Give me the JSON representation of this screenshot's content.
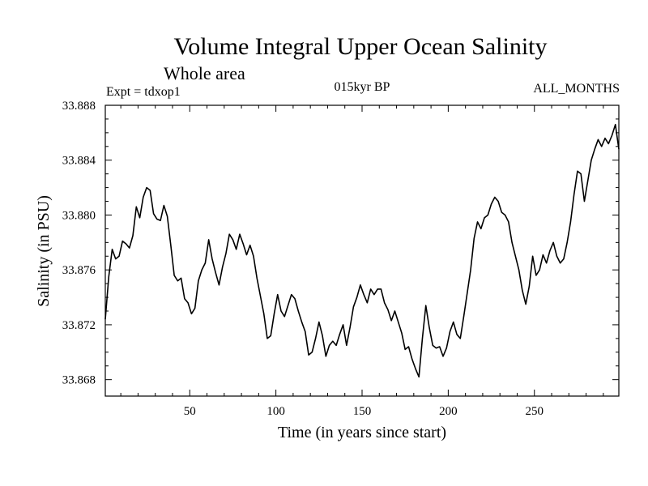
{
  "colors": {
    "line": "#000000",
    "background": "#ffffff"
  },
  "chart_data": {
    "type": "line",
    "title": "Volume Integral Upper Ocean Salinity",
    "subtitle": "Whole area",
    "annotation_left": "Expt = tdxop1",
    "annotation_center": "015kyr BP",
    "annotation_right": "ALL_MONTHS",
    "xlabel": "Time (in years since start)",
    "ylabel": "Salinity (in PSU)",
    "xlim": [
      1,
      299
    ],
    "ylim": [
      33.8668,
      33.888
    ],
    "xticks": [
      50,
      100,
      150,
      200,
      250
    ],
    "yticks": [
      33.868,
      33.872,
      33.876,
      33.88,
      33.884,
      33.888
    ],
    "ytick_labels": [
      "33.868",
      "33.872",
      "33.876",
      "33.880",
      "33.884",
      "33.888"
    ],
    "grid": false,
    "series": [
      {
        "name": "Salinity",
        "x": [
          1,
          3,
          5,
          7,
          9,
          11,
          13,
          15,
          17,
          19,
          21,
          23,
          25,
          27,
          29,
          31,
          33,
          35,
          37,
          39,
          41,
          43,
          45,
          47,
          49,
          51,
          53,
          55,
          57,
          59,
          61,
          63,
          65,
          67,
          69,
          71,
          73,
          75,
          77,
          79,
          81,
          83,
          85,
          87,
          89,
          91,
          93,
          95,
          97,
          99,
          101,
          103,
          105,
          107,
          109,
          111,
          113,
          115,
          117,
          119,
          121,
          123,
          125,
          127,
          129,
          131,
          133,
          135,
          137,
          139,
          141,
          143,
          145,
          147,
          149,
          151,
          153,
          155,
          157,
          159,
          161,
          163,
          165,
          167,
          169,
          171,
          173,
          175,
          177,
          179,
          181,
          183,
          185,
          187,
          189,
          191,
          193,
          195,
          197,
          199,
          201,
          203,
          205,
          207,
          209,
          211,
          213,
          215,
          217,
          219,
          221,
          223,
          225,
          227,
          229,
          231,
          233,
          235,
          237,
          239,
          241,
          243,
          245,
          247,
          249,
          251,
          253,
          255,
          257,
          259,
          261,
          263,
          265,
          267,
          269,
          271,
          273,
          275,
          277,
          279,
          281,
          283,
          285,
          287,
          289,
          291,
          293,
          295,
          297,
          299
        ],
        "values": [
          33.8724,
          33.8755,
          33.8775,
          33.8768,
          33.877,
          33.8781,
          33.8779,
          33.8776,
          33.8785,
          33.8806,
          33.8798,
          33.8813,
          33.882,
          33.8818,
          33.8801,
          33.8797,
          33.8796,
          33.8807,
          33.8799,
          33.8778,
          33.8756,
          33.8752,
          33.8754,
          33.8739,
          33.8736,
          33.8728,
          33.8732,
          33.8752,
          33.876,
          33.8765,
          33.8782,
          33.8768,
          33.8758,
          33.8749,
          33.8762,
          33.8772,
          33.8786,
          33.8782,
          33.8775,
          33.8786,
          33.8779,
          33.8771,
          33.8778,
          33.877,
          33.8754,
          33.8741,
          33.8728,
          33.871,
          33.8712,
          33.8728,
          33.8742,
          33.873,
          33.8726,
          33.8734,
          33.8742,
          33.8739,
          33.873,
          33.8722,
          33.8715,
          33.8698,
          33.87,
          33.871,
          33.8722,
          33.8712,
          33.8697,
          33.8705,
          33.8708,
          33.8705,
          33.8713,
          33.872,
          33.8705,
          33.8718,
          33.8733,
          33.874,
          33.8749,
          33.8742,
          33.8736,
          33.8746,
          33.8742,
          33.8746,
          33.8746,
          33.8736,
          33.8731,
          33.8723,
          33.873,
          33.8722,
          33.8714,
          33.8702,
          33.8704,
          33.8695,
          33.8688,
          33.8682,
          33.871,
          33.8734,
          33.8718,
          33.8705,
          33.8703,
          33.8704,
          33.8697,
          33.8703,
          33.8715,
          33.8722,
          33.8713,
          33.871,
          33.8726,
          33.8743,
          33.876,
          33.8783,
          33.8795,
          33.879,
          33.8798,
          33.88,
          33.8808,
          33.8813,
          33.881,
          33.8802,
          33.88,
          33.8795,
          33.878,
          33.877,
          33.876,
          33.8745,
          33.8735,
          33.8748,
          33.877,
          33.8756,
          33.876,
          33.8771,
          33.8765,
          33.8774,
          33.878,
          33.877,
          33.8765,
          33.8768,
          33.878,
          33.8795,
          33.8815,
          33.8832,
          33.883,
          33.881,
          33.8825,
          33.884,
          33.8848,
          33.8855,
          33.885,
          33.8856,
          33.8852,
          33.8858,
          33.8866,
          33.8848
        ]
      }
    ]
  }
}
